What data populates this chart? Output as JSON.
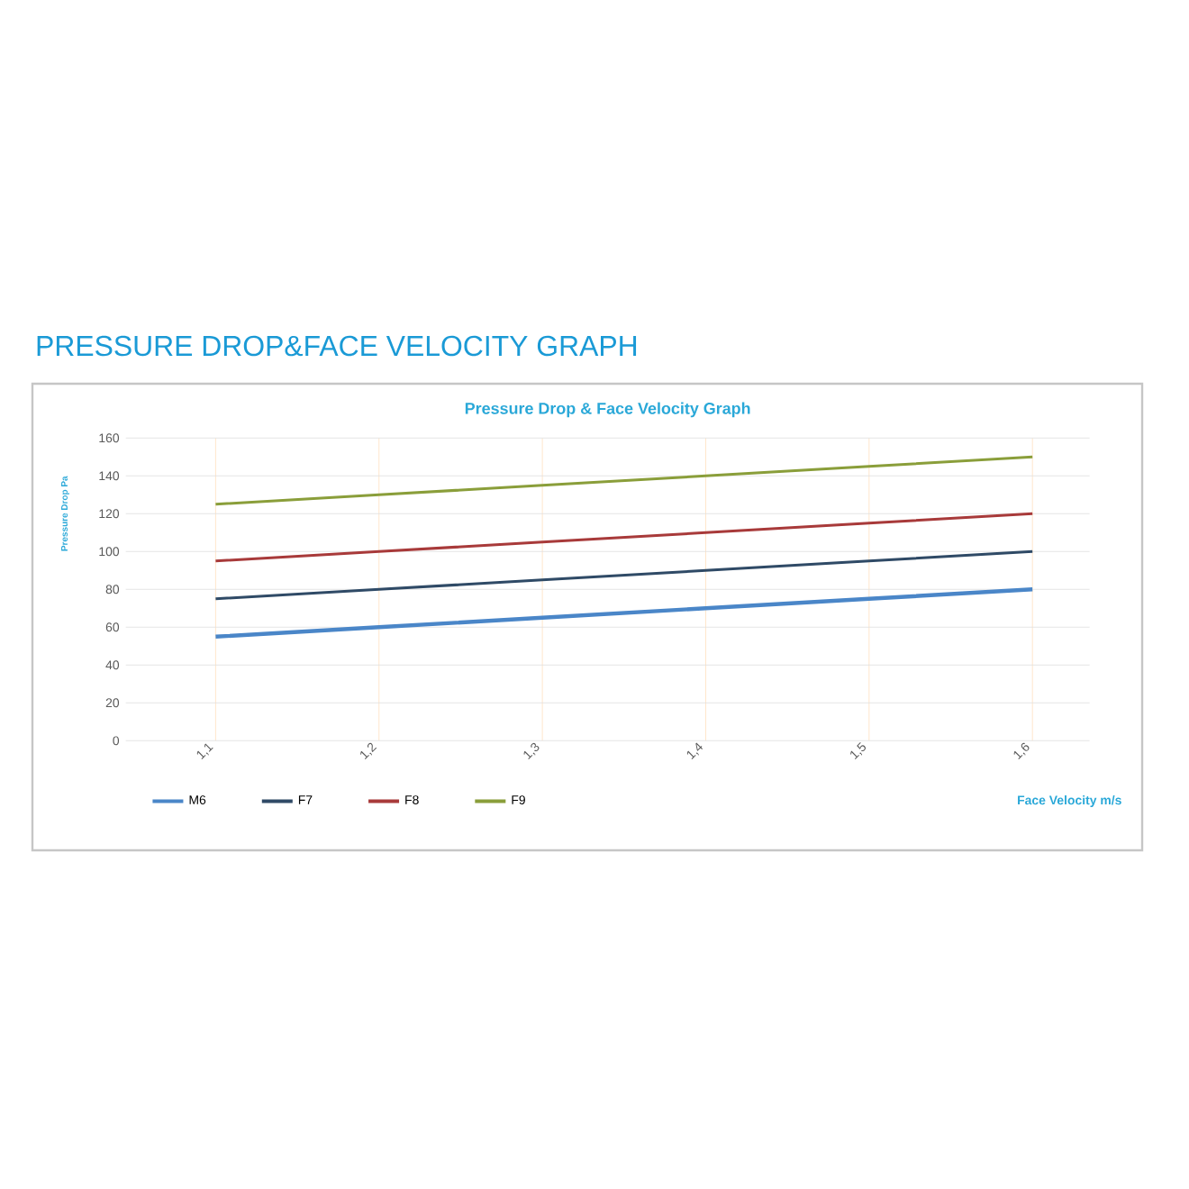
{
  "chart_data": {
    "type": "line",
    "title": "PRESSURE DROP&FACE VELOCITY GRAPH",
    "subtitle": "Pressure Drop  &  Face Velocity  Graph",
    "xlabel": "Face Velocity  m/s",
    "ylabel": "Pressure Drop  Pa",
    "categories": [
      "1,1",
      "1,2",
      "1,3",
      "1,4",
      "1,5",
      "1,6"
    ],
    "series": [
      {
        "name": "M6",
        "color": "#4a86c8",
        "values": [
          55,
          60,
          65,
          70,
          75,
          80
        ]
      },
      {
        "name": "F7",
        "color": "#2f4a66",
        "values": [
          75,
          80,
          85,
          90,
          95,
          100
        ]
      },
      {
        "name": "F8",
        "color": "#a83a3a",
        "values": [
          95,
          100,
          105,
          110,
          115,
          120
        ]
      },
      {
        "name": "F9",
        "color": "#8a9e3a",
        "values": [
          125,
          130,
          135,
          140,
          145,
          150
        ]
      }
    ],
    "ylim": [
      0,
      160
    ],
    "yticks": [
      0,
      20,
      40,
      60,
      80,
      100,
      120,
      140,
      160
    ],
    "grid": true,
    "legend": "bottom",
    "line_style": "solid"
  }
}
